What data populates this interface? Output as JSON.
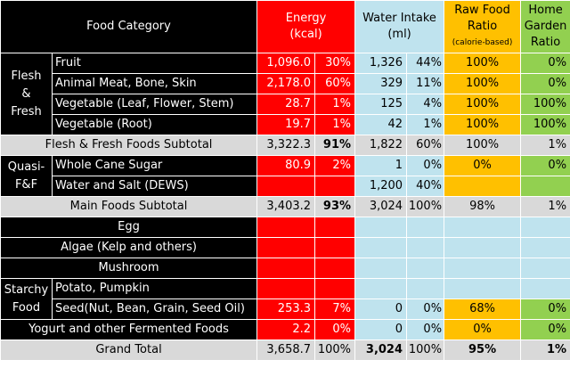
{
  "header": {
    "food_category": "Food Category",
    "energy_line1": "Energy",
    "energy_line2": "(kcal)",
    "water_line1": "Water Intake",
    "water_line2": "(ml)",
    "raw_line1": "Raw Food",
    "raw_line2": "Ratio",
    "raw_line3": "(calorie-based)",
    "home_line1": "Home",
    "home_line2": "Garden",
    "home_line3": "Ratio"
  },
  "groups": {
    "flesh_fresh": [
      "Flesh",
      "&",
      "Fresh"
    ],
    "quasi": [
      "Quasi-",
      "F&F"
    ],
    "starchy": [
      "Starchy",
      "Food"
    ]
  },
  "rows": [
    {
      "name": "Fruit",
      "energy": "1,096.0",
      "energy_pct": "30%",
      "water": "1,326",
      "water_pct": "44%",
      "raw": "100%",
      "home": "0%"
    },
    {
      "name": "Animal Meat, Bone, Skin",
      "energy": "2,178.0",
      "energy_pct": "60%",
      "water": "329",
      "water_pct": "11%",
      "raw": "100%",
      "home": "0%"
    },
    {
      "name": "Vegetable (Leaf, Flower, Stem)",
      "energy": "28.7",
      "energy_pct": "1%",
      "water": "125",
      "water_pct": "4%",
      "raw": "100%",
      "home": "100%"
    },
    {
      "name": "Vegetable (Root)",
      "energy": "19.7",
      "energy_pct": "1%",
      "water": "42",
      "water_pct": "1%",
      "raw": "100%",
      "home": "100%"
    },
    {
      "name": "Flesh & Fresh Foods Subtotal",
      "energy": "3,322.3",
      "energy_pct": "91%",
      "water": "1,822",
      "water_pct": "60%",
      "raw": "100%",
      "home": "1%"
    },
    {
      "name": "Whole Cane Sugar",
      "energy": "80.9",
      "energy_pct": "2%",
      "water": "1",
      "water_pct": "0%",
      "raw": "0%",
      "home": "0%"
    },
    {
      "name": "Water and Salt (DEWS)",
      "energy": "",
      "energy_pct": "",
      "water": "1,200",
      "water_pct": "40%",
      "raw": "",
      "home": ""
    },
    {
      "name": "Main Foods Subtotal",
      "energy": "3,403.2",
      "energy_pct": "93%",
      "water": "3,024",
      "water_pct": "100%",
      "raw": "98%",
      "home": "1%"
    },
    {
      "name": "Egg",
      "energy": "",
      "energy_pct": "",
      "water": "",
      "water_pct": "",
      "raw": "",
      "home": ""
    },
    {
      "name": "Algae (Kelp and others)",
      "energy": "",
      "energy_pct": "",
      "water": "",
      "water_pct": "",
      "raw": "",
      "home": ""
    },
    {
      "name": "Mushroom",
      "energy": "",
      "energy_pct": "",
      "water": "",
      "water_pct": "",
      "raw": "",
      "home": ""
    },
    {
      "name": "Potato, Pumpkin",
      "energy": "",
      "energy_pct": "",
      "water": "",
      "water_pct": "",
      "raw": "",
      "home": ""
    },
    {
      "name": "Seed(Nut, Bean, Grain, Seed Oil)",
      "energy": "253.3",
      "energy_pct": "7%",
      "water": "0",
      "water_pct": "0%",
      "raw": "68%",
      "home": "0%"
    },
    {
      "name": "Yogurt and other Fermented Foods",
      "energy": "2.2",
      "energy_pct": "0%",
      "water": "0",
      "water_pct": "0%",
      "raw": "0%",
      "home": "0%"
    },
    {
      "name": "Grand Total",
      "energy": "3,658.7",
      "energy_pct": "100%",
      "water": "3,024",
      "water_pct": "100%",
      "raw": "95%",
      "home": "1%"
    }
  ],
  "colors": {
    "energy": "#ff0000",
    "water": "#bfe3ee",
    "raw": "#ffc000",
    "home": "#92d050",
    "subtotal": "#d9d9d9",
    "category": "#000000"
  }
}
